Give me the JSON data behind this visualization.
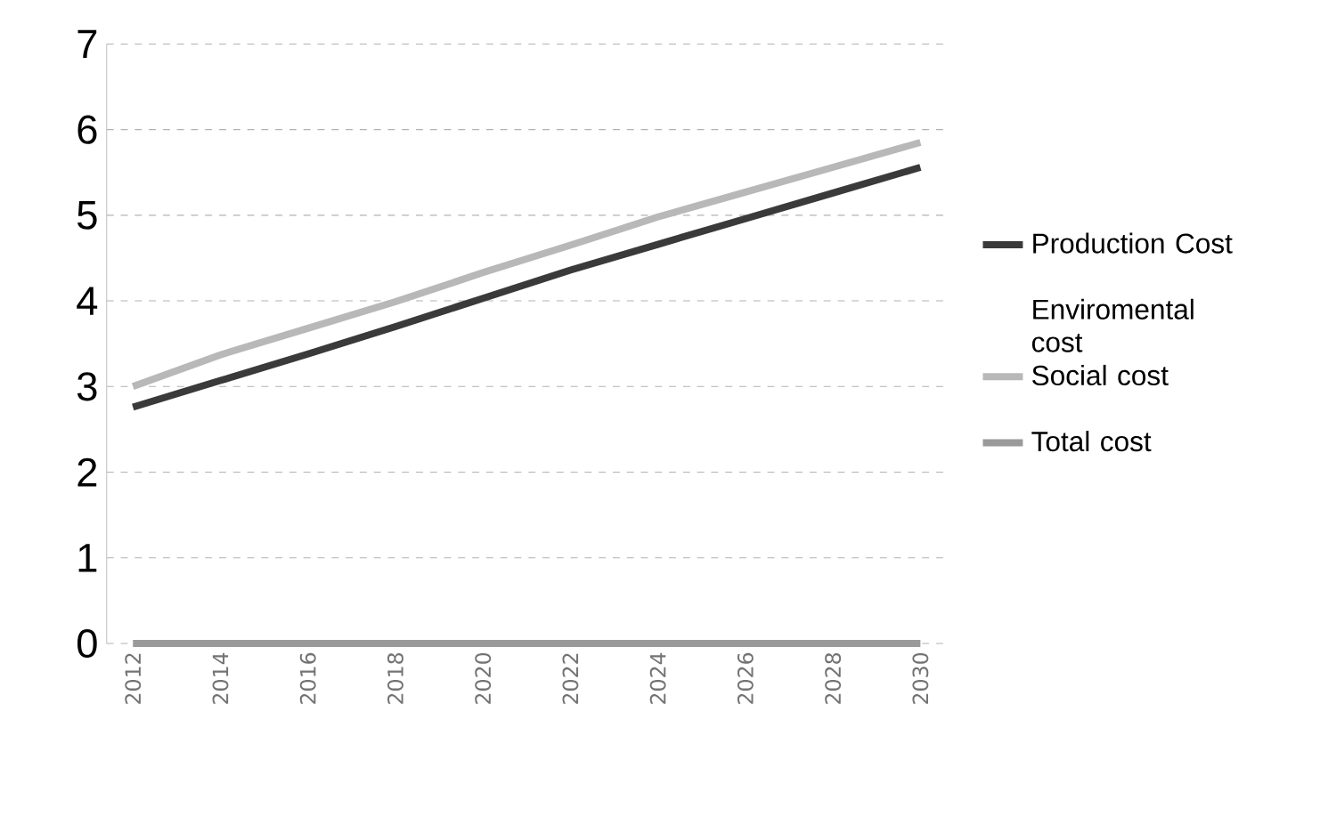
{
  "chart_data": {
    "type": "line",
    "x": [
      2012,
      2014,
      2016,
      2018,
      2020,
      2022,
      2024,
      2026,
      2028,
      2030
    ],
    "series": [
      {
        "name": "Production Cost",
        "color": "#3a3a3a",
        "values": [
          2.76,
          3.07,
          3.38,
          3.7,
          4.03,
          4.36,
          4.66,
          4.96,
          5.26,
          5.56
        ]
      },
      {
        "name": "Enviromental cost",
        "values": [
          null,
          null,
          null,
          null,
          null,
          null,
          null,
          null,
          null,
          null
        ]
      },
      {
        "name": "Social cost",
        "color": "#b8b8b8",
        "values": [
          3.0,
          3.37,
          3.68,
          3.99,
          4.33,
          4.65,
          4.98,
          5.27,
          5.56,
          5.85
        ]
      },
      {
        "name": "Total cost",
        "color": "#9a9a9a",
        "values": [
          0,
          0,
          0,
          0,
          0,
          0,
          0,
          0,
          0,
          0
        ]
      }
    ],
    "xlim": [
      2012,
      2030
    ],
    "xticks": [
      2012,
      2014,
      2016,
      2018,
      2020,
      2022,
      2024,
      2026,
      2028,
      2030
    ],
    "ylim": [
      0,
      7
    ],
    "yticks": [
      0,
      1,
      2,
      3,
      4,
      5,
      6,
      7
    ],
    "grid": "y",
    "legend": "right",
    "marker": "none",
    "line_style": "solid"
  }
}
